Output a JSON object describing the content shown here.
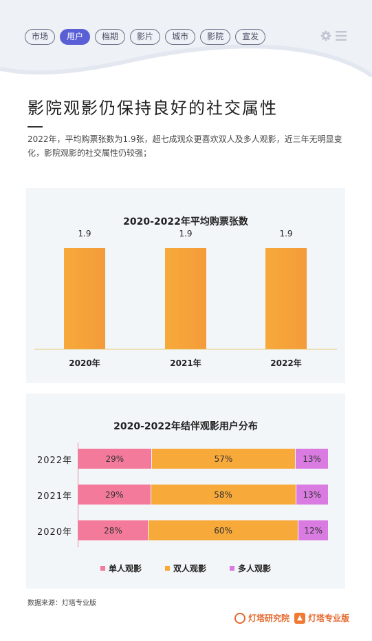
{
  "nav": {
    "tabs": [
      {
        "label": "市场",
        "active": false
      },
      {
        "label": "用户",
        "active": true
      },
      {
        "label": "档期",
        "active": false
      },
      {
        "label": "影片",
        "active": false
      },
      {
        "label": "城市",
        "active": false
      },
      {
        "label": "影院",
        "active": false
      },
      {
        "label": "宣发",
        "active": false
      }
    ],
    "settings_icon": "gear-icon",
    "menu_icon": "hamburger-menu-icon"
  },
  "page": {
    "title": "影院观影仍保持良好的社交属性",
    "description": "2022年，平均购票张数为1.9张，超七成观众更喜欢双人及多人观影，近三年无明显变化，影院观影的社交属性仍较强；"
  },
  "chart_data": [
    {
      "type": "bar",
      "title": "2020-2022年平均购票张数",
      "categories": [
        "2020年",
        "2021年",
        "2022年"
      ],
      "values": [
        1.9,
        1.9,
        1.9
      ],
      "value_labels": [
        "1.9",
        "1.9",
        "1.9"
      ],
      "ylim": [
        0,
        2.6
      ],
      "color": "#f7a93a",
      "grid": false
    },
    {
      "type": "bar",
      "orientation": "horizontal-stacked-percent",
      "title": "2020-2022年结伴观影用户分布",
      "categories": [
        "2022年",
        "2021年",
        "2020年"
      ],
      "series": [
        {
          "name": "单人观影",
          "values": [
            29,
            29,
            28
          ],
          "labels": [
            "29%",
            "29%",
            "28%"
          ],
          "color": "#f47a9c"
        },
        {
          "name": "双人观影",
          "values": [
            57,
            58,
            60
          ],
          "labels": [
            "57%",
            "58%",
            "60%"
          ],
          "color": "#f7a93a"
        },
        {
          "name": "多人观影",
          "values": [
            13,
            13,
            12
          ],
          "labels": [
            "13%",
            "13%",
            "12%"
          ],
          "color": "#d97be0"
        }
      ],
      "legend": "bottom"
    }
  ],
  "footer": {
    "source": "数据来源：灯塔专业版",
    "brand_research": "灯塔研究院",
    "brand_pro": "灯塔专业版"
  }
}
